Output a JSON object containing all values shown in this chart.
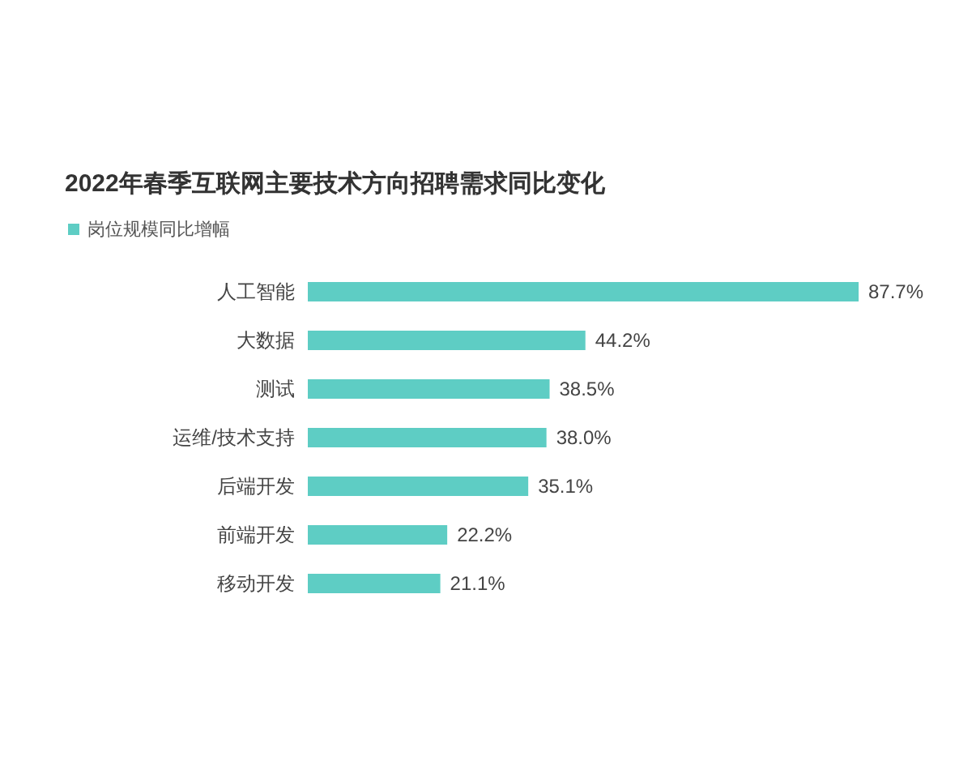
{
  "chart_data": {
    "type": "bar",
    "orientation": "horizontal",
    "title": "2022年春季互联网主要技术方向招聘需求同比变化",
    "categories": [
      "人工智能",
      "大数据",
      "测试",
      "运维/技术支持",
      "后端开发",
      "前端开发",
      "移动开发"
    ],
    "series": [
      {
        "name": "岗位规模同比增幅",
        "color": "#5ecdc4",
        "values": [
          87.7,
          44.2,
          38.5,
          38.0,
          35.1,
          22.2,
          21.1
        ],
        "value_labels": [
          "87.7%",
          "44.2%",
          "38.5%",
          "38.0%",
          "35.1%",
          "22.2%",
          "21.1%"
        ]
      }
    ],
    "legend": "top left"
  }
}
